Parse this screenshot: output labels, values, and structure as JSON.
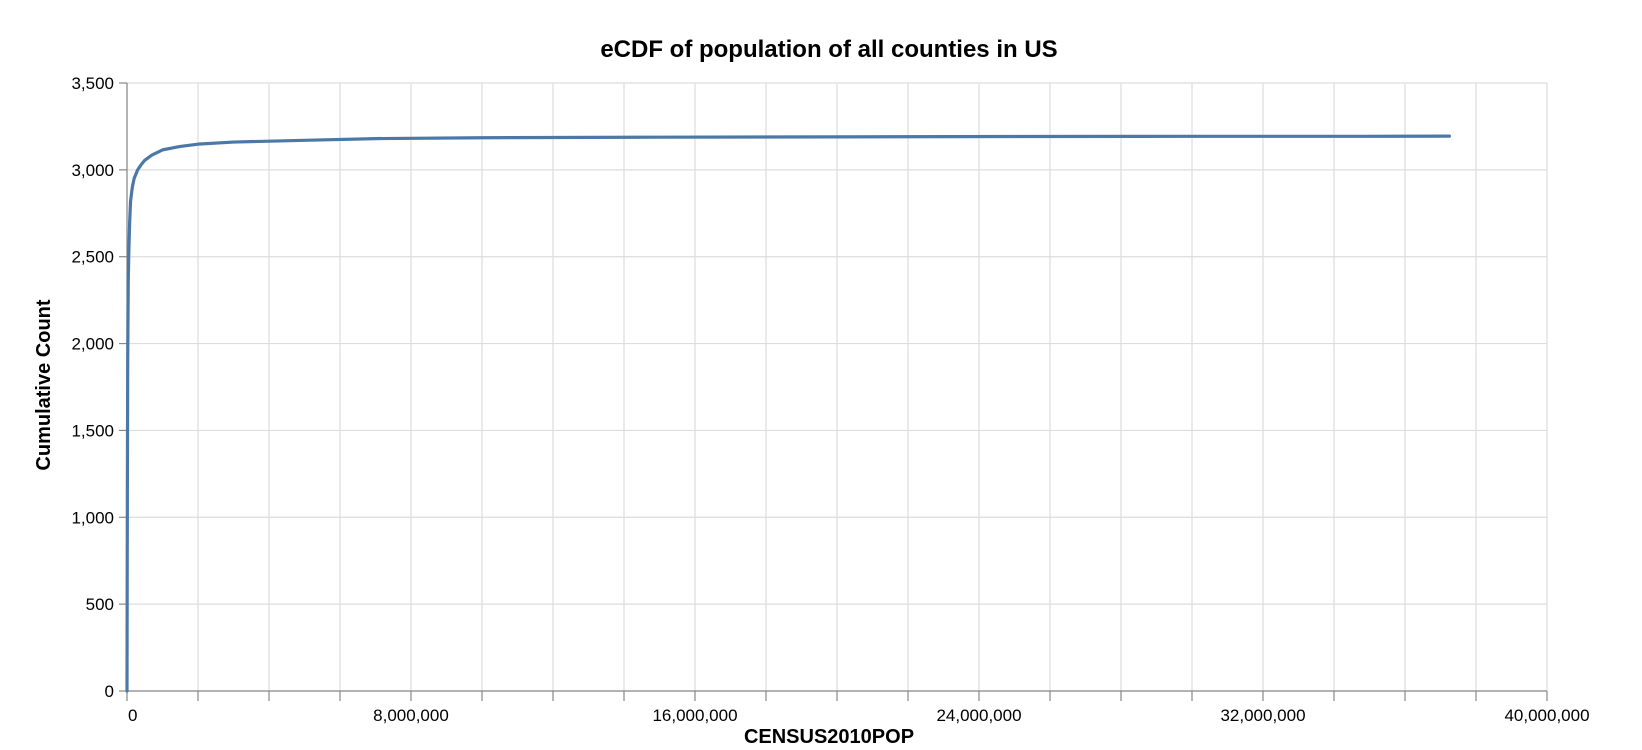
{
  "chart_data": {
    "type": "line",
    "title": "eCDF of population of all counties in US",
    "xlabel": "CENSUS2010POP",
    "ylabel": "Cumulative Count",
    "xlim": [
      0,
      40000000
    ],
    "ylim": [
      0,
      3500
    ],
    "x_tick_values": [
      0,
      8000000,
      16000000,
      24000000,
      32000000,
      40000000
    ],
    "x_tick_labels": [
      "0",
      "8,000,000",
      "16,000,000",
      "24,000,000",
      "32,000,000",
      "40,000,000"
    ],
    "x_minor_tick_step": 2000000,
    "y_tick_values": [
      0,
      500,
      1000,
      1500,
      2000,
      2500,
      3000,
      3500
    ],
    "y_tick_labels": [
      "0",
      "500",
      "1,000",
      "1,500",
      "2,000",
      "2,500",
      "3,000",
      "3,500"
    ],
    "grid": true,
    "color": "#4c78a8",
    "series": [
      {
        "x": [
          0,
          5000,
          10000,
          20000,
          35000,
          50000,
          75000,
          100000,
          150000,
          200000,
          300000,
          400000,
          500000,
          700000,
          1000000,
          1500000,
          2000000,
          3000000,
          4000000,
          5000000,
          7000000,
          10000000,
          15000000,
          20000000,
          25000000,
          30000000,
          35000000,
          37250000
        ],
        "values": [
          0,
          600,
          1150,
          1900,
          2350,
          2520,
          2700,
          2820,
          2900,
          2950,
          3000,
          3030,
          3055,
          3085,
          3115,
          3135,
          3148,
          3160,
          3165,
          3170,
          3180,
          3185,
          3188,
          3190,
          3192,
          3193,
          3193,
          3194
        ]
      }
    ]
  }
}
